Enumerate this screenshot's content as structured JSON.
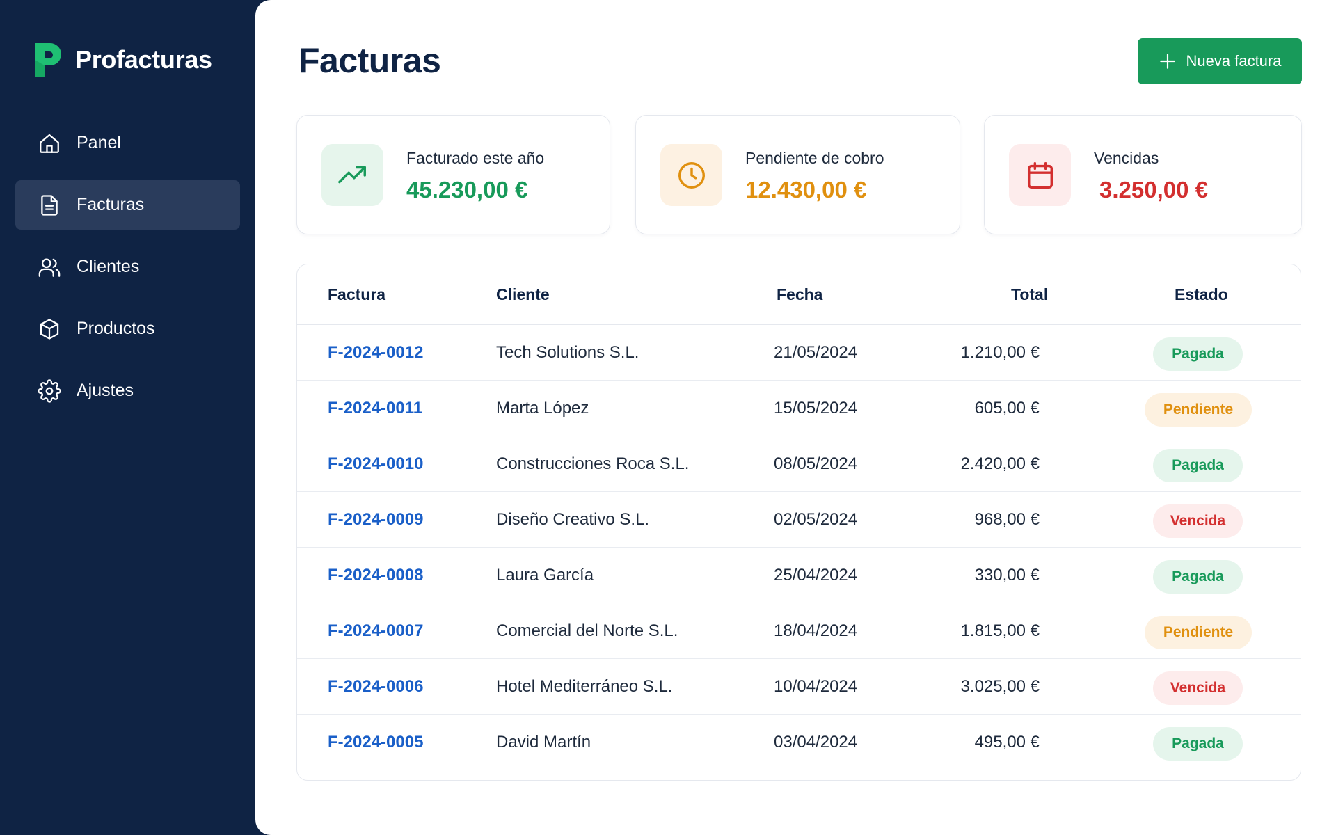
{
  "app": {
    "name": "Profacturas"
  },
  "colors": {
    "sidebar": "#0f2344",
    "accent_green": "#189a5a",
    "pending_orange": "#e0900f",
    "overdue_red": "#d32f2f",
    "link_blue": "#1a5fc8"
  },
  "sidebar": {
    "items": [
      {
        "label": "Panel",
        "icon": "home-icon",
        "active": false
      },
      {
        "label": "Facturas",
        "icon": "document-icon",
        "active": true
      },
      {
        "label": "Clientes",
        "icon": "users-icon",
        "active": false
      },
      {
        "label": "Productos",
        "icon": "box-icon",
        "active": false
      },
      {
        "label": "Ajustes",
        "icon": "gear-icon",
        "active": false
      }
    ]
  },
  "header": {
    "title": "Facturas",
    "new_button_label": "Nueva factura"
  },
  "stats": [
    {
      "label": "Facturado este año",
      "value": "45.230,00 €",
      "icon": "trending-up-icon"
    },
    {
      "label": "Pendiente de cobro",
      "value": "12.430,00 €",
      "icon": "clock-icon"
    },
    {
      "label": "Vencidas",
      "value": "3.250,00 €",
      "icon": "calendar-icon"
    }
  ],
  "table": {
    "headers": {
      "invoice": "Factura",
      "client": "Cliente",
      "date": "Fecha",
      "total": "Total",
      "status": "Estado"
    },
    "rows": [
      {
        "invoice": "F-2024-0012",
        "client": "Tech Solutions S.L.",
        "date": "21/05/2024",
        "total": "1.210,00 €",
        "status": "Pagada"
      },
      {
        "invoice": "F-2024-0011",
        "client": "Marta López",
        "date": "15/05/2024",
        "total": "605,00 €",
        "status": "Pendiente"
      },
      {
        "invoice": "F-2024-0010",
        "client": "Construcciones Roca S.L.",
        "date": "08/05/2024",
        "total": "2.420,00 €",
        "status": "Pagada"
      },
      {
        "invoice": "F-2024-0009",
        "client": "Diseño Creativo S.L.",
        "date": "02/05/2024",
        "total": "968,00 €",
        "status": "Vencida"
      },
      {
        "invoice": "F-2024-0008",
        "client": "Laura García",
        "date": "25/04/2024",
        "total": "330,00 €",
        "status": "Pagada"
      },
      {
        "invoice": "F-2024-0007",
        "client": "Comercial del Norte S.L.",
        "date": "18/04/2024",
        "total": "1.815,00 €",
        "status": "Pendiente"
      },
      {
        "invoice": "F-2024-0006",
        "client": "Hotel Mediterráneo S.L.",
        "date": "10/04/2024",
        "total": "3.025,00 €",
        "status": "Vencida"
      },
      {
        "invoice": "F-2024-0005",
        "client": "David Martín",
        "date": "03/04/2024",
        "total": "495,00 €",
        "status": "Pagada"
      }
    ]
  }
}
